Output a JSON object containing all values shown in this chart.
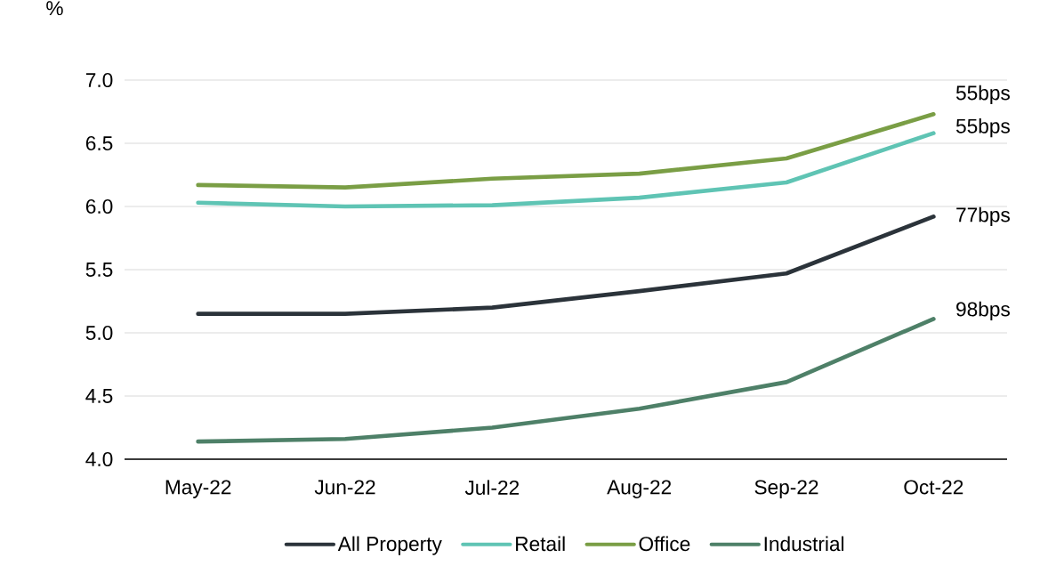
{
  "chart_data": {
    "type": "line",
    "ylabel": "%",
    "categories": [
      "May-22",
      "Jun-22",
      "Jul-22",
      "Aug-22",
      "Sep-22",
      "Oct-22"
    ],
    "series": [
      {
        "name": "All Property",
        "color": "#2b333a",
        "values": [
          5.15,
          5.15,
          5.2,
          5.33,
          5.47,
          5.92
        ]
      },
      {
        "name": "Retail",
        "color": "#5fc4b4",
        "values": [
          6.03,
          6.0,
          6.01,
          6.07,
          6.19,
          6.58
        ]
      },
      {
        "name": "Office",
        "color": "#7a9e45",
        "values": [
          6.17,
          6.15,
          6.22,
          6.26,
          6.38,
          6.73
        ]
      },
      {
        "name": "Industrial",
        "color": "#4e8068",
        "values": [
          4.14,
          4.16,
          4.25,
          4.4,
          4.61,
          5.11
        ]
      }
    ],
    "annotations": [
      {
        "text": "55bps",
        "x": "Oct-22",
        "y": 6.73
      },
      {
        "text": "55bps",
        "x": "Oct-22",
        "y": 6.58
      },
      {
        "text": "77bps",
        "x": "Oct-22",
        "y": 5.92
      },
      {
        "text": "98bps",
        "x": "Oct-22",
        "y": 5.11
      }
    ],
    "ylim": [
      4.0,
      7.0
    ],
    "yticks": [
      {
        "value": 4.0,
        "label": "4.0"
      },
      {
        "value": 4.5,
        "label": "4.5"
      },
      {
        "value": 5.0,
        "label": "5.0"
      },
      {
        "value": 5.5,
        "label": "5.5"
      },
      {
        "value": 6.0,
        "label": "6.0"
      },
      {
        "value": 6.5,
        "label": "6.5"
      },
      {
        "value": 7.0,
        "label": "7.0"
      }
    ],
    "grid": "y",
    "legend": "bottom",
    "marker": "none",
    "line_style": "solid"
  }
}
